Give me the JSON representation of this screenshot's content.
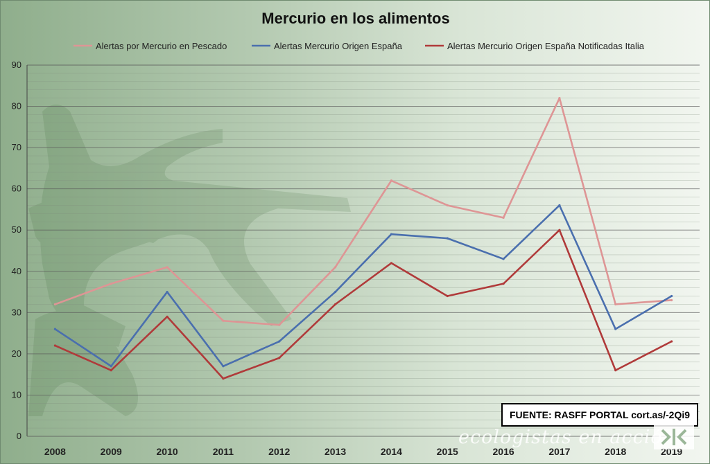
{
  "chart_data": {
    "type": "line",
    "title": "Mercurio en los alimentos",
    "categories": [
      "2008",
      "2009",
      "2010",
      "2011",
      "2012",
      "2013",
      "2014",
      "2015",
      "2016",
      "2017",
      "2018",
      "2019"
    ],
    "ylim": [
      0,
      90
    ],
    "yticks": [
      0,
      10,
      20,
      30,
      40,
      50,
      60,
      70,
      80,
      90
    ],
    "grid": true,
    "legend": "top",
    "series": [
      {
        "name": "Alertas por Mercurio en Pescado",
        "color": "#de9595",
        "values": [
          32,
          37,
          41,
          28,
          27,
          41,
          62,
          56,
          53,
          82,
          32,
          33
        ]
      },
      {
        "name": "Alertas Mercurio Origen España",
        "color": "#4a6fae",
        "values": [
          26,
          17,
          35,
          17,
          23,
          35,
          49,
          48,
          43,
          56,
          26,
          34
        ]
      },
      {
        "name": "Alertas Mercurio Origen España Notificadas Italia",
        "color": "#b03a3a",
        "values": [
          22,
          16,
          29,
          14,
          19,
          32,
          42,
          34,
          37,
          50,
          16,
          23
        ]
      }
    ]
  },
  "source_note": "FUENTE: RASFF PORTAL cort.as/-2Qi9",
  "watermark": "ecologistas en acción",
  "watermark_icon": "ecologistas-logo-icon"
}
